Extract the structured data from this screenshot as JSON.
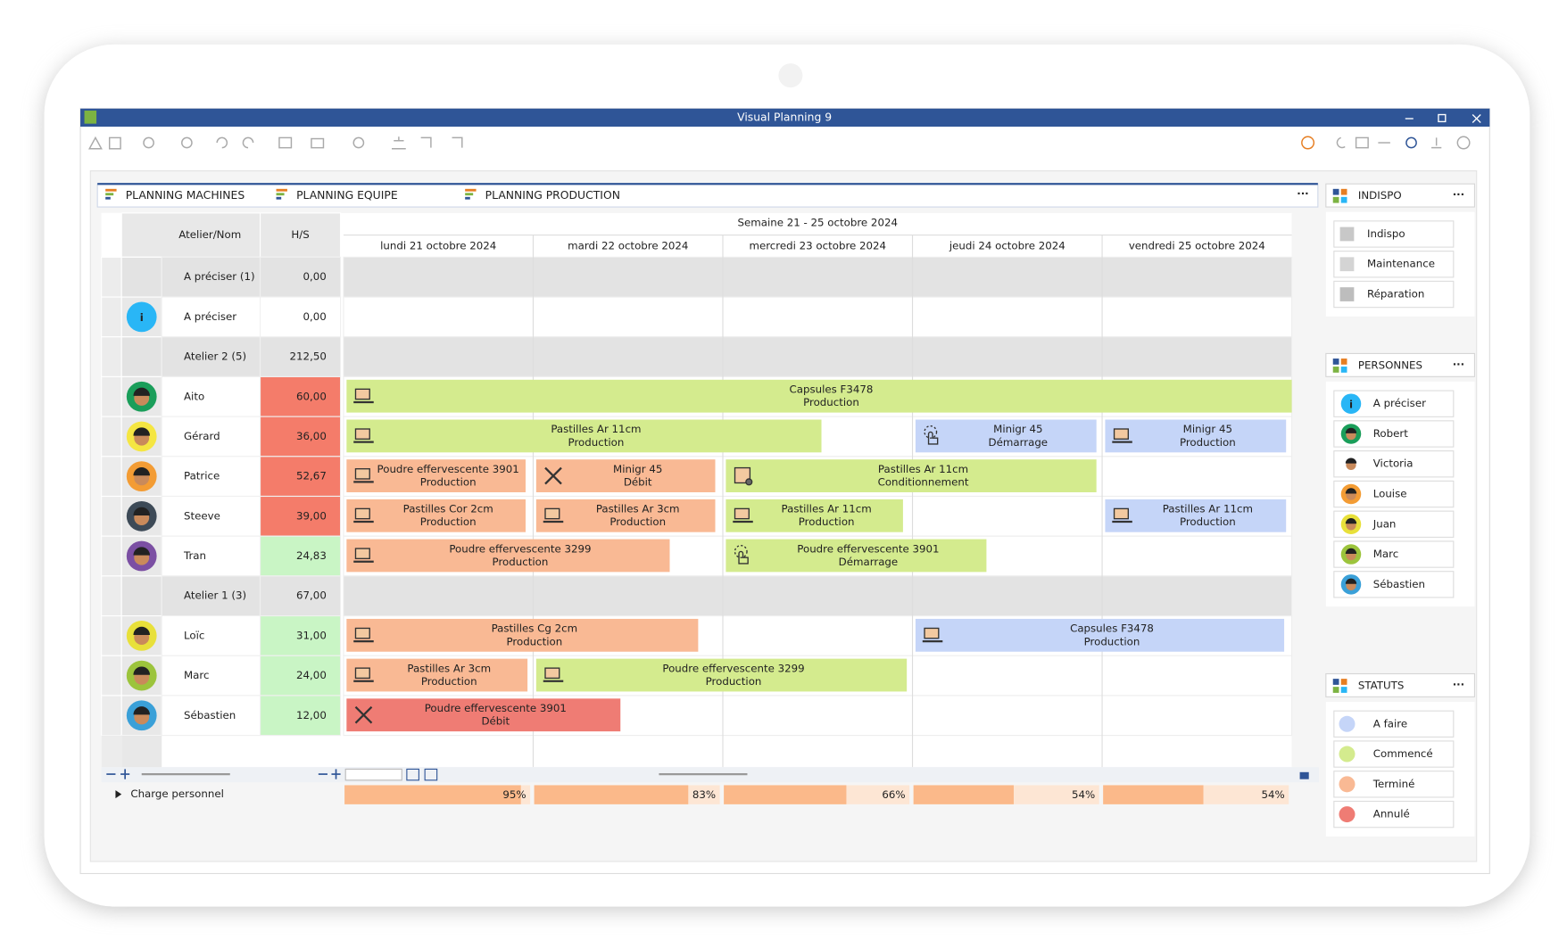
{
  "window": {
    "title": "Visual Planning 9"
  },
  "tabs": [
    "PLANNING MACHINES",
    "PLANNING EQUIPE",
    "PLANNING PRODUCTION"
  ],
  "active_tab": 1,
  "grid": {
    "week": "Semaine 21 - 25 octobre 2024",
    "columns": [
      "Atelier/Nom",
      "H/S"
    ],
    "days": [
      "lundi 21 octobre 2024",
      "mardi 22 octobre 2024",
      "mercredi 23 octobre 2024",
      "jeudi 24 octobre 2024",
      "vendredi 25 octobre 2024"
    ],
    "rows": [
      {
        "name": "A préciser (1)",
        "hs": "0,00",
        "group": true
      },
      {
        "name": "A préciser",
        "hs": "0,00",
        "avatar": "info"
      },
      {
        "name": "Atelier 2 (5)",
        "hs": "212,50",
        "group": true
      },
      {
        "name": "Aito",
        "hs": "60,00",
        "avatar": "#1a9e5a",
        "hs_color": "#f47c6a"
      },
      {
        "name": "Gérard",
        "hs": "36,00",
        "avatar": "#f5e642",
        "hs_color": "#f47c6a"
      },
      {
        "name": "Patrice",
        "hs": "52,67",
        "avatar": "#f39c34",
        "hs_color": "#f47c6a"
      },
      {
        "name": "Steeve",
        "hs": "39,00",
        "avatar": "#3d4a57",
        "hs_color": "#f47c6a"
      },
      {
        "name": "Tran",
        "hs": "24,83",
        "avatar": "#7b4fa3",
        "hs_color": "#c9f5c5"
      },
      {
        "name": "Atelier 1 (3)",
        "hs": "67,00",
        "group": true
      },
      {
        "name": "Loïc",
        "hs": "31,00",
        "avatar": "#e8e03a",
        "hs_color": "#c9f5c5"
      },
      {
        "name": "Marc",
        "hs": "24,00",
        "avatar": "#9cc43c",
        "hs_color": "#c9f5c5"
      },
      {
        "name": "Sébastien",
        "hs": "12,00",
        "avatar": "#3aa0d8",
        "hs_color": "#c9f5c5"
      }
    ]
  },
  "events": [
    {
      "row": 3,
      "start": 0,
      "end": 5,
      "lines": [
        "Capsules F3478",
        "Production"
      ],
      "color": "#d4eb8e",
      "icon": "machine"
    },
    {
      "row": 4,
      "start": 0,
      "end": 2.52,
      "lines": [
        "Pastilles Ar 11cm",
        "Production"
      ],
      "color": "#d4eb8e",
      "icon": "machine"
    },
    {
      "row": 4,
      "start": 3,
      "end": 3.97,
      "lines": [
        "Minigr 45",
        "Démarrage"
      ],
      "color": "#c5d5f8",
      "icon": "hand"
    },
    {
      "row": 4,
      "start": 4,
      "end": 4.97,
      "lines": [
        "Minigr 45",
        "Production"
      ],
      "color": "#c5d5f8",
      "icon": "machine"
    },
    {
      "row": 5,
      "start": 0,
      "end": 0.96,
      "lines": [
        "Poudre effervescente 3901",
        "Production"
      ],
      "color": "#f9b994",
      "icon": "machine"
    },
    {
      "row": 5,
      "start": 1,
      "end": 1.96,
      "lines": [
        "Minigr 45",
        "Débit"
      ],
      "color": "#f9b994",
      "icon": "tool"
    },
    {
      "row": 5,
      "start": 2,
      "end": 3.97,
      "lines": [
        "Pastilles Ar 11cm",
        "Conditionnement"
      ],
      "color": "#d4eb8e",
      "icon": "box"
    },
    {
      "row": 6,
      "start": 0,
      "end": 0.96,
      "lines": [
        "Pastilles Cor 2cm",
        "Production"
      ],
      "color": "#f9b994",
      "icon": "machine"
    },
    {
      "row": 6,
      "start": 1,
      "end": 1.96,
      "lines": [
        "Pastilles Ar 3cm",
        "Production"
      ],
      "color": "#f9b994",
      "icon": "machine"
    },
    {
      "row": 6,
      "start": 2,
      "end": 2.95,
      "lines": [
        "Pastilles Ar 11cm",
        "Production"
      ],
      "color": "#d4eb8e",
      "icon": "machine"
    },
    {
      "row": 6,
      "start": 4,
      "end": 4.97,
      "lines": [
        "Pastilles Ar 11cm",
        "Production"
      ],
      "color": "#c5d5f8",
      "icon": "machine"
    },
    {
      "row": 7,
      "start": 0,
      "end": 1.72,
      "lines": [
        "Poudre effervescente 3299",
        "Production"
      ],
      "color": "#f9b994",
      "icon": "machine"
    },
    {
      "row": 7,
      "start": 2,
      "end": 3.39,
      "lines": [
        "Poudre effervescente 3901",
        "Démarrage"
      ],
      "color": "#d4eb8e",
      "icon": "hand"
    },
    {
      "row": 9,
      "start": 0,
      "end": 1.87,
      "lines": [
        "Pastilles Cg 2cm",
        "Production"
      ],
      "color": "#f9b994",
      "icon": "machine"
    },
    {
      "row": 9,
      "start": 3,
      "end": 4.96,
      "lines": [
        "Capsules F3478",
        "Production"
      ],
      "color": "#c5d5f8",
      "icon": "machine"
    },
    {
      "row": 10,
      "start": 0,
      "end": 0.97,
      "lines": [
        "Pastilles Ar 3cm",
        "Production"
      ],
      "color": "#f9b994",
      "icon": "machine"
    },
    {
      "row": 10,
      "start": 1,
      "end": 2.97,
      "lines": [
        "Poudre effervescente 3299",
        "Production"
      ],
      "color": "#d4eb8e",
      "icon": "machine"
    },
    {
      "row": 11,
      "start": 0,
      "end": 1.46,
      "lines": [
        "Poudre effervescente 3901",
        "Débit"
      ],
      "color": "#ef7c74",
      "icon": "tool"
    }
  ],
  "charge": {
    "label": "Charge personnel",
    "values": [
      95,
      83,
      66,
      54,
      54
    ],
    "value_labels": [
      "95%",
      "83%",
      "66%",
      "54%",
      "54%"
    ],
    "color": "#fbb98a"
  },
  "panels": [
    {
      "title": "INDISPO",
      "items": [
        {
          "label": "Indispo",
          "color": "#c8c8c8"
        },
        {
          "label": "Maintenance",
          "color": "#d4d4d4"
        },
        {
          "label": "Réparation",
          "color": "#bdbdbd"
        }
      ],
      "swatch": "square"
    },
    {
      "title": "PERSONNES",
      "items": [
        {
          "label": "A préciser",
          "color": "info"
        },
        {
          "label": "Robert",
          "color": "#1a9e5a"
        },
        {
          "label": "Victoria",
          "color": "#ffffff"
        },
        {
          "label": "Louise",
          "color": "#f39c34"
        },
        {
          "label": "Juan",
          "color": "#e8e03a"
        },
        {
          "label": "Marc",
          "color": "#9cc43c"
        },
        {
          "label": "Sébastien",
          "color": "#3aa0d8"
        }
      ],
      "swatch": "avatar"
    },
    {
      "title": "STATUTS",
      "items": [
        {
          "label": "A faire",
          "color": "#c5d5f8"
        },
        {
          "label": "Commencé",
          "color": "#d4eb8e"
        },
        {
          "label": "Terminé",
          "color": "#f9b994"
        },
        {
          "label": "Annulé",
          "color": "#ef7c74"
        }
      ],
      "swatch": "circle"
    }
  ]
}
